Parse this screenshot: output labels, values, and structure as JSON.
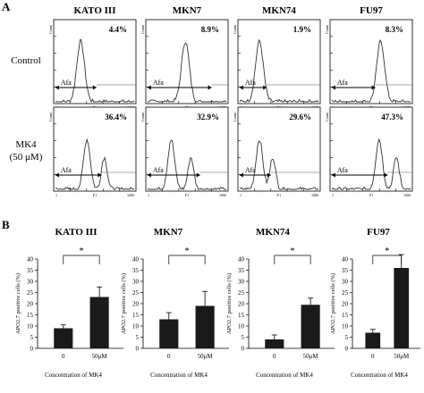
{
  "panel_a": {
    "letter": "A",
    "cell_lines": [
      "KATO III",
      "MKN7",
      "MKN74",
      "FU97"
    ],
    "row_labels": {
      "control": "Control",
      "treatment_line1": "MK4",
      "treatment_line2": "(50 μM)"
    },
    "control_percentages": [
      "4.4%",
      "8.9%",
      "1.9%",
      "8.3%"
    ],
    "treatment_percentages": [
      "36.4%",
      "32.9%",
      "29.6%",
      "47.3%"
    ],
    "gate_label": "Afa",
    "histogram_ylabel": "Count",
    "histogram_xlabel": "F1",
    "histogram_xticks": [
      "1",
      "1000"
    ]
  },
  "panel_b": {
    "letter": "B",
    "xlabel": "Concentration of MK4",
    "ylabel": "APO2.7 positive cells (%)",
    "significance_mark": "*"
  },
  "chart_data": [
    {
      "type": "bar",
      "title": "KATO III",
      "categories": [
        "0",
        "50μM"
      ],
      "values": [
        9,
        23
      ],
      "errors": [
        1.5,
        4.5
      ],
      "xlabel": "Concentration of MK4",
      "ylabel": "APO2.7 positive cells (%)",
      "ylim": [
        0,
        40
      ],
      "yticks": [
        0,
        5,
        10,
        15,
        20,
        25,
        30,
        35,
        40
      ],
      "significance": "*",
      "bar_color": "#1a1a1a"
    },
    {
      "type": "bar",
      "title": "MKN7",
      "categories": [
        "0",
        "50μM"
      ],
      "values": [
        13,
        19
      ],
      "errors": [
        3,
        6.5
      ],
      "xlabel": "Concentration of MK4",
      "ylabel": "APO2.7 positive cells (%)",
      "ylim": [
        0,
        40
      ],
      "yticks": [
        0,
        5,
        10,
        15,
        20,
        25,
        30,
        35,
        40
      ],
      "significance": "*",
      "bar_color": "#1a1a1a"
    },
    {
      "type": "bar",
      "title": "MKN74",
      "categories": [
        "0",
        "50μM"
      ],
      "values": [
        4,
        19.5
      ],
      "errors": [
        2,
        3
      ],
      "xlabel": "Concentration of MK4",
      "ylabel": "APO2.7 positive cells (%)",
      "ylim": [
        0,
        40
      ],
      "yticks": [
        0,
        5,
        10,
        15,
        20,
        25,
        30,
        35,
        40
      ],
      "significance": "*",
      "bar_color": "#1a1a1a"
    },
    {
      "type": "bar",
      "title": "FU97",
      "categories": [
        "0",
        "50μM"
      ],
      "values": [
        7,
        36
      ],
      "errors": [
        1.5,
        6
      ],
      "xlabel": "Concentration of MK4",
      "ylabel": "APO2.7 positive cells (%)",
      "ylim": [
        0,
        40
      ],
      "yticks": [
        0,
        5,
        10,
        15,
        20,
        25,
        30,
        35,
        40
      ],
      "significance": "*",
      "bar_color": "#1a1a1a"
    }
  ]
}
